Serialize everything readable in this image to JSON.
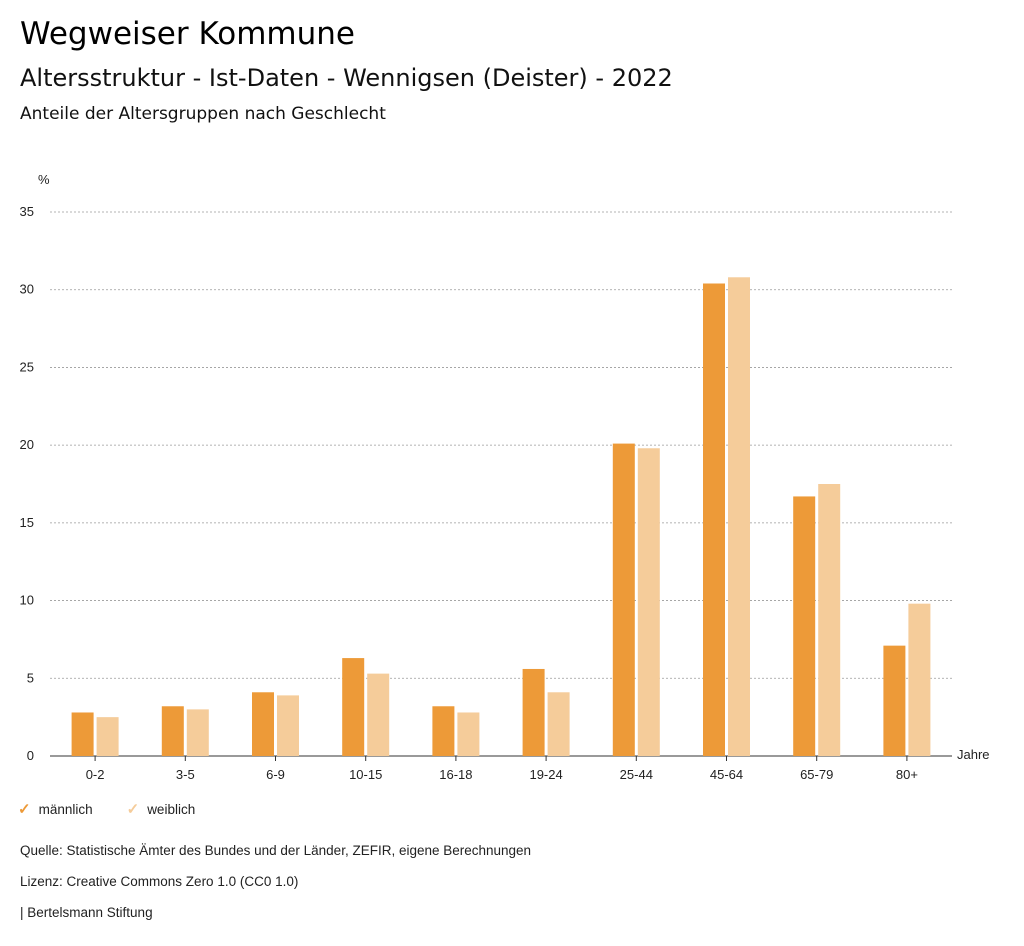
{
  "header": {
    "title": "Wegweiser Kommune",
    "subtitle": "Altersstruktur - Ist-Daten - Wennigsen (Deister) - 2022",
    "chart_subtitle": "Anteile der Altersgruppen nach Geschlecht"
  },
  "colors": {
    "male": "#ED9A38",
    "female": "#F5CC9A",
    "grid": "#9A9A9A"
  },
  "chart_data": {
    "type": "bar",
    "title": "Anteile der Altersgruppen nach Geschlecht",
    "ylabel": "%",
    "xlabel": "Jahre",
    "ylim": [
      0,
      35
    ],
    "yticks": [
      0,
      5,
      10,
      15,
      20,
      25,
      30,
      35
    ],
    "grid": true,
    "legend_position": "bottom-left",
    "categories": [
      "0-2",
      "3-5",
      "6-9",
      "10-15",
      "16-18",
      "19-24",
      "25-44",
      "45-64",
      "65-79",
      "80+"
    ],
    "series": [
      {
        "name": "männlich",
        "values": [
          2.8,
          3.2,
          4.1,
          6.3,
          3.2,
          5.6,
          20.1,
          30.4,
          16.7,
          7.1
        ]
      },
      {
        "name": "weiblich",
        "values": [
          2.5,
          3.0,
          3.9,
          5.3,
          2.8,
          4.1,
          19.8,
          30.8,
          17.5,
          9.8
        ]
      }
    ]
  },
  "legend": {
    "male_label": "männlich",
    "female_label": "weiblich",
    "check_glyph": "✓"
  },
  "footer": {
    "source": "Quelle: Statistische Ämter des Bundes und der Länder, ZEFIR, eigene Berechnungen",
    "license": "Lizenz: Creative Commons Zero 1.0 (CC0 1.0)",
    "brand": "| Bertelsmann Stiftung"
  }
}
